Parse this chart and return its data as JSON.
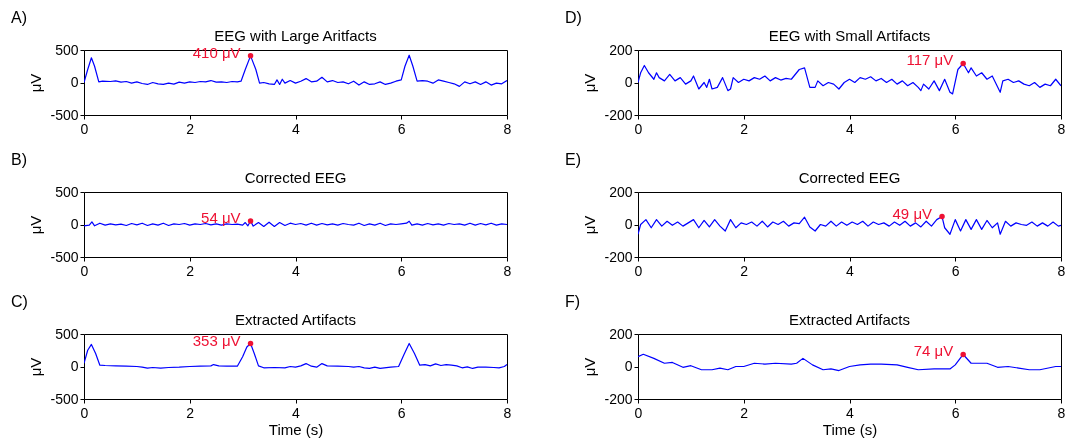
{
  "chart_data": [
    {
      "type": "line",
      "title": "EEG with Large Aritfacts",
      "ylabel": "μV",
      "annotations": [
        "A)",
        {
          "text": "410 μV",
          "x": 3.15,
          "y": 410
        }
      ],
      "xlim": [
        0,
        8
      ],
      "xticks": [
        0,
        2,
        4,
        6,
        8
      ],
      "ylim": [
        -500,
        500
      ],
      "yticks": [
        -500,
        0,
        500
      ],
      "grid": false,
      "series": [
        {
          "color": "#0000ff",
          "x": [
            0,
            0.07,
            0.14,
            0.2,
            0.28,
            0.35,
            0.5,
            0.6,
            0.7,
            0.8,
            0.9,
            1.0,
            1.1,
            1.2,
            1.3,
            1.4,
            1.5,
            1.6,
            1.7,
            1.8,
            1.9,
            2.0,
            2.1,
            2.2,
            2.3,
            2.4,
            2.5,
            2.6,
            2.7,
            2.8,
            2.9,
            2.97,
            3.05,
            3.15,
            3.25,
            3.32,
            3.4,
            3.5,
            3.6,
            3.65,
            3.7,
            3.75,
            3.8,
            3.9,
            4.0,
            4.1,
            4.2,
            4.3,
            4.4,
            4.5,
            4.6,
            4.7,
            4.8,
            4.9,
            5.0,
            5.1,
            5.2,
            5.3,
            5.4,
            5.5,
            5.6,
            5.7,
            5.8,
            5.9,
            6.0,
            6.07,
            6.15,
            6.22,
            6.3,
            6.4,
            6.5,
            6.6,
            6.7,
            6.8,
            6.9,
            7.0,
            7.1,
            7.2,
            7.3,
            7.4,
            7.5,
            7.6,
            7.7,
            7.8,
            7.9,
            8.0
          ],
          "values": [
            0,
            200,
            380,
            250,
            10,
            20,
            15,
            25,
            5,
            15,
            -10,
            10,
            -15,
            -30,
            0,
            -20,
            -30,
            -10,
            -25,
            5,
            -10,
            10,
            0,
            15,
            10,
            30,
            5,
            10,
            0,
            15,
            10,
            20,
            200,
            410,
            200,
            -10,
            0,
            -20,
            -30,
            40,
            -30,
            50,
            -10,
            30,
            -10,
            20,
            60,
            10,
            20,
            80,
            10,
            30,
            0,
            10,
            -20,
            20,
            -40,
            10,
            -30,
            -20,
            10,
            -30,
            -10,
            20,
            40,
            250,
            420,
            250,
            20,
            30,
            20,
            -10,
            40,
            20,
            0,
            -20,
            -60,
            10,
            -20,
            10,
            -30,
            10,
            -40,
            -10,
            -20,
            30
          ]
        }
      ]
    },
    {
      "type": "line",
      "title": "Corrected EEG",
      "ylabel": "μV",
      "annotations": [
        "B)",
        {
          "text": "54 μV",
          "x": 3.15,
          "y": 54
        }
      ],
      "xlim": [
        0,
        8
      ],
      "xticks": [
        0,
        2,
        4,
        6,
        8
      ],
      "ylim": [
        -500,
        500
      ],
      "yticks": [
        -500,
        0,
        500
      ],
      "grid": false,
      "series": [
        {
          "color": "#0000ff",
          "x": [
            0,
            0.1,
            0.15,
            0.2,
            0.3,
            0.4,
            0.5,
            0.6,
            0.7,
            0.8,
            0.9,
            1.0,
            1.1,
            1.2,
            1.3,
            1.4,
            1.5,
            1.6,
            1.7,
            1.8,
            1.9,
            2.0,
            2.1,
            2.2,
            2.3,
            2.4,
            2.5,
            2.6,
            2.7,
            2.8,
            2.9,
            3.0,
            3.05,
            3.1,
            3.15,
            3.2,
            3.3,
            3.4,
            3.5,
            3.6,
            3.7,
            3.8,
            3.9,
            4.0,
            4.1,
            4.2,
            4.3,
            4.4,
            4.5,
            4.6,
            4.7,
            4.8,
            4.9,
            5.0,
            5.1,
            5.2,
            5.3,
            5.4,
            5.5,
            5.6,
            5.7,
            5.8,
            5.9,
            6.0,
            6.1,
            6.15,
            6.2,
            6.3,
            6.4,
            6.5,
            6.6,
            6.7,
            6.8,
            6.9,
            7.0,
            7.1,
            7.2,
            7.3,
            7.4,
            7.5,
            7.6,
            7.7,
            7.8,
            7.9,
            8.0
          ],
          "values": [
            -20,
            -10,
            40,
            -20,
            20,
            -10,
            10,
            -5,
            5,
            -15,
            15,
            -5,
            20,
            -15,
            10,
            -10,
            20,
            -15,
            10,
            0,
            15,
            -10,
            10,
            0,
            15,
            -5,
            10,
            -10,
            10,
            0,
            5,
            -10,
            30,
            -20,
            54,
            -25,
            30,
            -30,
            35,
            -30,
            30,
            -15,
            20,
            0,
            15,
            -10,
            20,
            -10,
            15,
            -5,
            10,
            -10,
            15,
            0,
            -10,
            20,
            -15,
            10,
            -10,
            20,
            -15,
            10,
            0,
            10,
            20,
            50,
            -10,
            10,
            -10,
            15,
            -5,
            10,
            -10,
            15,
            0,
            10,
            -10,
            20,
            -10,
            15,
            -5,
            20,
            -10,
            10,
            0
          ]
        }
      ]
    },
    {
      "type": "line",
      "title": "Extracted Artifacts",
      "xlabel": "Time (s)",
      "ylabel": "μV",
      "annotations": [
        "C)",
        {
          "text": "353 μV",
          "x": 3.15,
          "y": 353
        }
      ],
      "xlim": [
        0,
        8
      ],
      "xticks": [
        0,
        2,
        4,
        6,
        8
      ],
      "ylim": [
        -500,
        500
      ],
      "yticks": [
        -500,
        0,
        500
      ],
      "grid": false,
      "series": [
        {
          "color": "#0000ff",
          "x": [
            0,
            0.07,
            0.14,
            0.22,
            0.3,
            0.4,
            0.6,
            0.8,
            1.0,
            1.1,
            1.2,
            1.3,
            1.45,
            1.6,
            1.8,
            2.0,
            2.2,
            2.4,
            2.45,
            2.55,
            2.7,
            2.9,
            3.0,
            3.08,
            3.15,
            3.22,
            3.3,
            3.4,
            3.6,
            3.8,
            3.9,
            4.0,
            4.1,
            4.2,
            4.3,
            4.4,
            4.5,
            4.6,
            4.8,
            5.0,
            5.1,
            5.2,
            5.3,
            5.4,
            5.5,
            5.6,
            5.8,
            5.95,
            6.05,
            6.15,
            6.25,
            6.35,
            6.45,
            6.55,
            6.65,
            6.75,
            6.85,
            6.95,
            7.05,
            7.15,
            7.25,
            7.35,
            7.45,
            7.6,
            7.75,
            7.85,
            7.95,
            8.0
          ],
          "values": [
            50,
            250,
            340,
            200,
            20,
            15,
            10,
            5,
            0,
            -10,
            -25,
            -15,
            -25,
            -15,
            -10,
            0,
            5,
            10,
            30,
            10,
            5,
            5,
            150,
            300,
            353,
            200,
            10,
            -20,
            -15,
            -20,
            0,
            -10,
            10,
            45,
            5,
            -10,
            45,
            10,
            5,
            0,
            -10,
            0,
            -20,
            -30,
            -10,
            -30,
            -10,
            0,
            180,
            355,
            200,
            20,
            30,
            10,
            40,
            15,
            30,
            20,
            10,
            -20,
            -5,
            -30,
            -10,
            -10,
            -15,
            -20,
            0,
            30
          ]
        }
      ]
    },
    {
      "type": "line",
      "title": "EEG with Small Artifacts",
      "ylabel": "μV",
      "annotations": [
        "D)",
        {
          "text": "117 μV",
          "x": 6.15,
          "y": 117
        }
      ],
      "xlim": [
        0,
        8
      ],
      "xticks": [
        0,
        2,
        4,
        6,
        8
      ],
      "ylim": [
        -200,
        200
      ],
      "yticks": [
        -200,
        0,
        200
      ],
      "grid": false,
      "series": [
        {
          "color": "#0000ff",
          "x": [
            0,
            0.05,
            0.12,
            0.2,
            0.25,
            0.3,
            0.35,
            0.4,
            0.5,
            0.6,
            0.7,
            0.8,
            0.9,
            1.0,
            1.05,
            1.15,
            1.25,
            1.3,
            1.35,
            1.4,
            1.5,
            1.6,
            1.7,
            1.75,
            1.8,
            1.9,
            2.0,
            2.1,
            2.2,
            2.3,
            2.4,
            2.5,
            2.6,
            2.7,
            2.8,
            2.9,
            3.05,
            3.15,
            3.25,
            3.35,
            3.4,
            3.5,
            3.6,
            3.7,
            3.8,
            3.9,
            4.0,
            4.1,
            4.2,
            4.3,
            4.4,
            4.5,
            4.6,
            4.7,
            4.8,
            4.9,
            5.0,
            5.1,
            5.2,
            5.3,
            5.35,
            5.4,
            5.5,
            5.6,
            5.7,
            5.8,
            5.9,
            5.95,
            6.05,
            6.15,
            6.25,
            6.3,
            6.4,
            6.5,
            6.6,
            6.7,
            6.85,
            6.9,
            7.0,
            7.1,
            7.2,
            7.3,
            7.4,
            7.5,
            7.6,
            7.7,
            7.8,
            7.9,
            8.0
          ],
          "values": [
            0,
            60,
            105,
            60,
            40,
            20,
            60,
            30,
            10,
            50,
            10,
            30,
            -10,
            10,
            40,
            -40,
            0,
            -30,
            20,
            -40,
            -30,
            30,
            -50,
            -40,
            30,
            0,
            20,
            10,
            30,
            20,
            40,
            10,
            30,
            15,
            25,
            20,
            80,
            90,
            -30,
            -30,
            10,
            -20,
            0,
            -10,
            -40,
            0,
            20,
            0,
            30,
            20,
            35,
            10,
            25,
            0,
            20,
            -10,
            10,
            -20,
            0,
            -30,
            -50,
            -10,
            -40,
            10,
            -50,
            20,
            -60,
            -70,
            80,
            117,
            60,
            90,
            40,
            60,
            20,
            40,
            -60,
            10,
            20,
            0,
            10,
            -10,
            -20,
            0,
            -30,
            -10,
            -20,
            20,
            -20
          ]
        }
      ]
    },
    {
      "type": "line",
      "title": "Corrected EEG",
      "ylabel": "μV",
      "annotations": [
        "E)",
        {
          "text": "49 μV",
          "x": 5.75,
          "y": 49
        }
      ],
      "xlim": [
        0,
        8
      ],
      "xticks": [
        0,
        2,
        4,
        6,
        8
      ],
      "ylim": [
        -200,
        200
      ],
      "yticks": [
        -200,
        0,
        200
      ],
      "grid": false,
      "series": [
        {
          "color": "#0000ff",
          "x": [
            0,
            0.05,
            0.15,
            0.25,
            0.35,
            0.45,
            0.55,
            0.65,
            0.75,
            0.85,
            0.95,
            1.05,
            1.15,
            1.25,
            1.35,
            1.45,
            1.55,
            1.65,
            1.75,
            1.85,
            1.95,
            2.05,
            2.15,
            2.25,
            2.35,
            2.45,
            2.55,
            2.65,
            2.75,
            2.85,
            2.95,
            3.05,
            3.15,
            3.25,
            3.35,
            3.45,
            3.55,
            3.65,
            3.75,
            3.85,
            3.95,
            4.05,
            4.15,
            4.25,
            4.35,
            4.45,
            4.55,
            4.65,
            4.75,
            4.85,
            4.95,
            5.05,
            5.15,
            5.25,
            5.35,
            5.45,
            5.55,
            5.65,
            5.75,
            5.8,
            5.9,
            6.0,
            6.1,
            6.2,
            6.3,
            6.4,
            6.5,
            6.6,
            6.7,
            6.8,
            6.85,
            6.95,
            7.05,
            7.15,
            7.25,
            7.35,
            7.45,
            7.55,
            7.65,
            7.75,
            7.85,
            7.95,
            8.0
          ],
          "values": [
            -60,
            0,
            30,
            -20,
            30,
            -10,
            20,
            -5,
            15,
            -10,
            10,
            30,
            -20,
            25,
            -15,
            30,
            -10,
            -40,
            30,
            -20,
            10,
            0,
            15,
            -10,
            20,
            -15,
            15,
            0,
            20,
            -10,
            10,
            5,
            45,
            -15,
            -40,
            0,
            -10,
            20,
            -10,
            15,
            -5,
            15,
            0,
            20,
            -10,
            15,
            0,
            10,
            -10,
            15,
            -5,
            20,
            -10,
            10,
            -15,
            20,
            -10,
            30,
            49,
            -20,
            -60,
            30,
            -40,
            30,
            -30,
            30,
            -30,
            25,
            -20,
            10,
            -60,
            20,
            -10,
            10,
            0,
            -5,
            15,
            -10,
            10,
            -10,
            15,
            -10,
            -5
          ]
        }
      ]
    },
    {
      "type": "line",
      "title": "Extracted Artifacts",
      "xlabel": "Time (s)",
      "ylabel": "μV",
      "annotations": [
        "F)",
        {
          "text": "74 μV",
          "x": 6.15,
          "y": 74
        }
      ],
      "xlim": [
        0,
        8
      ],
      "xticks": [
        0,
        2,
        4,
        6,
        8
      ],
      "ylim": [
        -200,
        200
      ],
      "yticks": [
        -200,
        0,
        200
      ],
      "grid": false,
      "series": [
        {
          "color": "#0000ff",
          "x": [
            0,
            0.1,
            0.3,
            0.5,
            0.65,
            0.85,
            1.0,
            1.2,
            1.4,
            1.55,
            1.7,
            1.85,
            2.0,
            2.2,
            2.4,
            2.6,
            2.9,
            3.0,
            3.12,
            3.3,
            3.5,
            3.65,
            3.8,
            4.0,
            4.2,
            4.4,
            4.6,
            4.9,
            5.1,
            5.3,
            5.6,
            5.9,
            6.0,
            6.15,
            6.3,
            6.6,
            6.8,
            7.0,
            7.2,
            7.4,
            7.6,
            7.9,
            8.0
          ],
          "values": [
            60,
            75,
            50,
            20,
            25,
            -5,
            5,
            -20,
            -20,
            -10,
            -20,
            0,
            0,
            20,
            15,
            20,
            15,
            20,
            50,
            10,
            -20,
            -15,
            -25,
            0,
            10,
            15,
            15,
            10,
            -5,
            -20,
            -15,
            -15,
            10,
            74,
            20,
            20,
            -5,
            0,
            -10,
            -20,
            -20,
            0,
            0
          ]
        }
      ]
    }
  ]
}
